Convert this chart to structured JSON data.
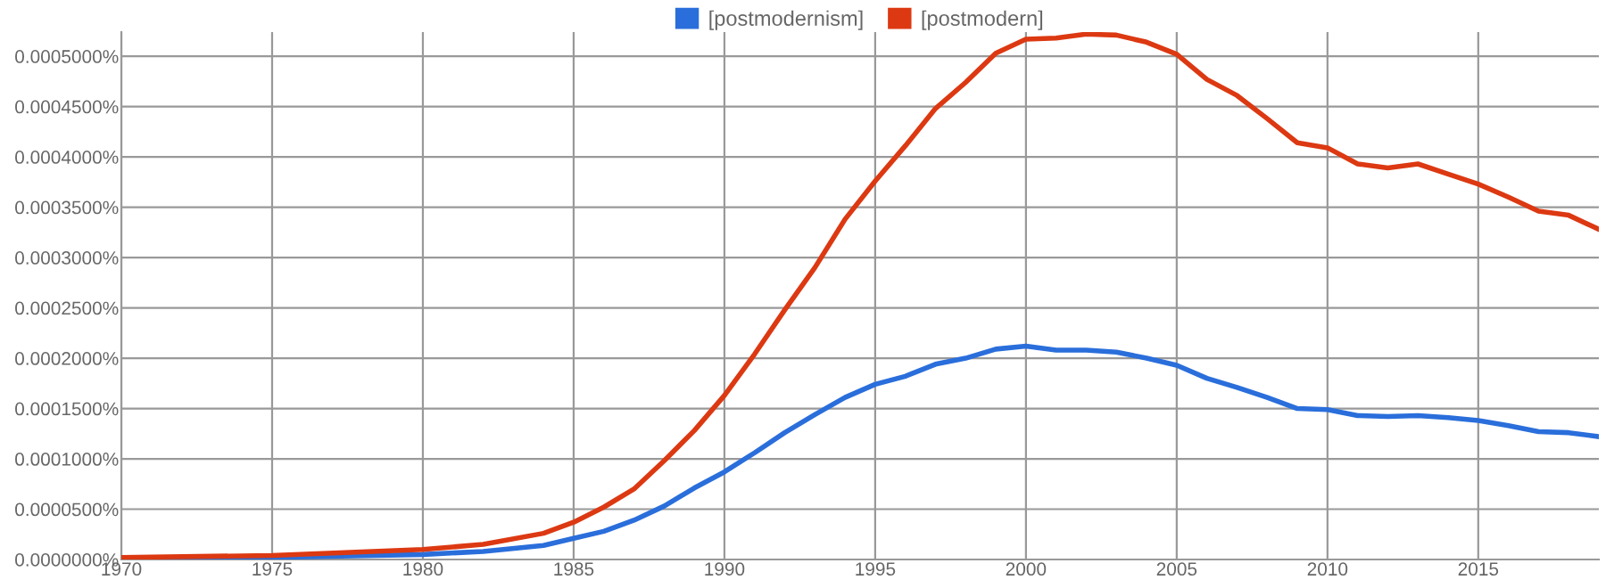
{
  "chart_data": {
    "type": "line",
    "x": [
      1970,
      1975,
      1980,
      1982,
      1984,
      1985,
      1986,
      1987,
      1988,
      1989,
      1990,
      1991,
      1992,
      1993,
      1994,
      1995,
      1996,
      1997,
      1998,
      1999,
      2000,
      2001,
      2002,
      2003,
      2004,
      2005,
      2006,
      2007,
      2008,
      2009,
      2010,
      2011,
      2012,
      2013,
      2014,
      2015,
      2016,
      2017,
      2018,
      2019
    ],
    "series": [
      {
        "name": "[postmodernism]",
        "color": "#2a6edb",
        "values": [
          1e-06,
          2e-06,
          5e-06,
          8e-06,
          1.4e-05,
          2.1e-05,
          2.8e-05,
          3.9e-05,
          5.3e-05,
          7.1e-05,
          8.7e-05,
          0.000106,
          0.000126,
          0.000144,
          0.000161,
          0.000174,
          0.000182,
          0.000194,
          0.0002,
          0.000209,
          0.000212,
          0.000208,
          0.000208,
          0.000206,
          0.0002,
          0.000193,
          0.00018,
          0.000171,
          0.000161,
          0.00015,
          0.000149,
          0.000143,
          0.000142,
          0.000143,
          0.000141,
          0.000138,
          0.000133,
          0.000127,
          0.000126,
          0.000122
        ]
      },
      {
        "name": "[postmodern]",
        "color": "#dc3912",
        "values": [
          2e-06,
          4e-06,
          1e-05,
          1.5e-05,
          2.6e-05,
          3.7e-05,
          5.2e-05,
          7e-05,
          9.8e-05,
          0.000128,
          0.000163,
          0.000204,
          0.000248,
          0.00029,
          0.000338,
          0.000376,
          0.000411,
          0.000448,
          0.000474,
          0.000503,
          0.000517,
          0.000518,
          0.000522,
          0.000521,
          0.000514,
          0.000502,
          0.000477,
          0.000461,
          0.000438,
          0.000414,
          0.000409,
          0.000393,
          0.000389,
          0.000393,
          0.000383,
          0.000373,
          0.00036,
          0.000346,
          0.000342,
          0.000328
        ]
      }
    ],
    "xlim": [
      1970,
      2019
    ],
    "xticks": [
      1970,
      1975,
      1980,
      1985,
      1990,
      1995,
      2000,
      2005,
      2010,
      2015
    ],
    "ylim": [
      0,
      0.000524
    ],
    "yticks": [
      {
        "value": 0,
        "label": "0.0000000%"
      },
      {
        "value": 5e-05,
        "label": "0.0000500%"
      },
      {
        "value": 0.0001,
        "label": "0.0001000%"
      },
      {
        "value": 0.00015,
        "label": "0.0001500%"
      },
      {
        "value": 0.0002,
        "label": "0.0002000%"
      },
      {
        "value": 0.00025,
        "label": "0.0002500%"
      },
      {
        "value": 0.0003,
        "label": "0.0003000%"
      },
      {
        "value": 0.00035,
        "label": "0.0003500%"
      },
      {
        "value": 0.0004,
        "label": "0.0004000%"
      },
      {
        "value": 0.00045,
        "label": "0.0004500%"
      },
      {
        "value": 0.0005,
        "label": "0.0005000%"
      }
    ],
    "grid": true,
    "legend": "top",
    "marker": "none",
    "line_style": "solid"
  }
}
